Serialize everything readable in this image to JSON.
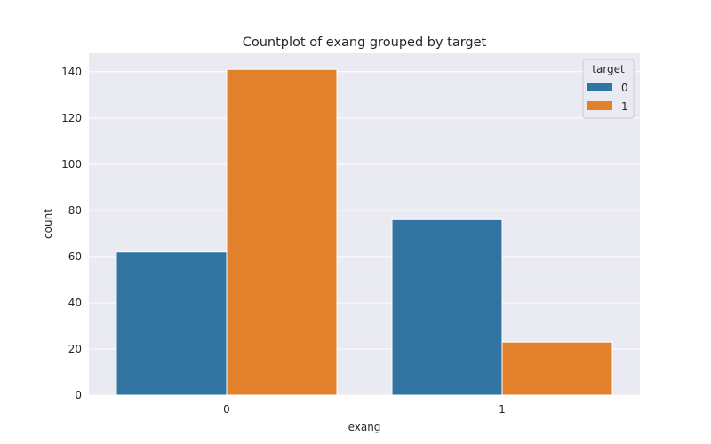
{
  "chart_data": {
    "type": "bar",
    "title": "Countplot of exang grouped by target",
    "xlabel": "exang",
    "ylabel": "count",
    "categories": [
      "0",
      "1"
    ],
    "series": [
      {
        "name": "0",
        "values": [
          62,
          76
        ],
        "color": "#3274a1"
      },
      {
        "name": "1",
        "values": [
          141,
          23
        ],
        "color": "#e1812c"
      }
    ],
    "ylim": [
      0,
      148
    ],
    "yticks": [
      0,
      20,
      40,
      60,
      80,
      100,
      120,
      140
    ],
    "grid": true,
    "legend": {
      "title": "target",
      "placement": "top-right"
    },
    "background": "#eaeaf2"
  }
}
